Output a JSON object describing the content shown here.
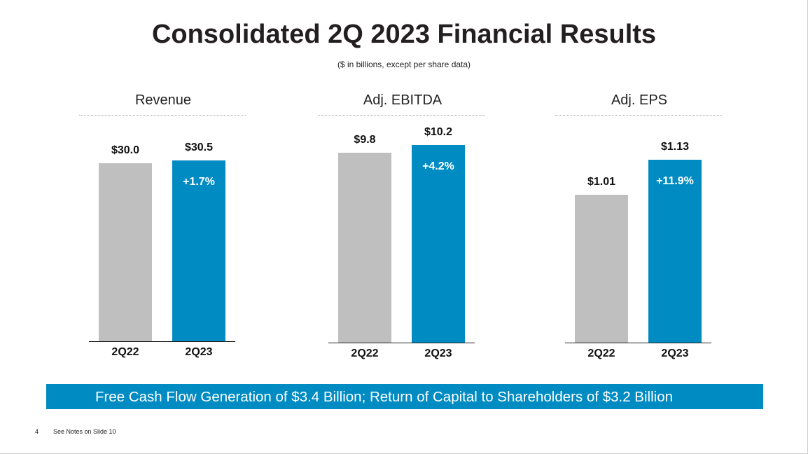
{
  "title": "Consolidated 2Q 2023 Financial Results",
  "subtitle": "($ in billions, except per share data)",
  "banner": "Free Cash Flow Generation of $3.4 Billion; Return of Capital to Shareholders of $3.2 Billion",
  "footer": {
    "page_number": "4",
    "notes": "See Notes on Slide 10"
  },
  "colors": {
    "prior": "#bfbfbf",
    "current": "#008bc2"
  },
  "chart_data": [
    {
      "type": "bar",
      "title": "Revenue",
      "categories": [
        "2Q22",
        "2Q23"
      ],
      "values": [
        30.0,
        30.5
      ],
      "value_labels": [
        "$30.0",
        "$30.5"
      ],
      "growth_label": "+1.7%",
      "ylim": [
        0,
        34.3
      ],
      "grid": false
    },
    {
      "type": "bar",
      "title": "Adj. EBITDA",
      "categories": [
        "2Q22",
        "2Q23"
      ],
      "values": [
        9.8,
        10.2
      ],
      "value_labels": [
        "$9.8",
        "$10.2"
      ],
      "growth_label": "+4.2%",
      "ylim": [
        0,
        10.5
      ],
      "grid": false
    },
    {
      "type": "bar",
      "title": "Adj. EPS",
      "categories": [
        "2Q22",
        "2Q23"
      ],
      "values": [
        1.01,
        1.13
      ],
      "value_labels": [
        "$1.01",
        "$1.13"
      ],
      "growth_label": "+11.9%",
      "ylim": [
        0.5,
        1.2
      ],
      "grid": false
    }
  ]
}
